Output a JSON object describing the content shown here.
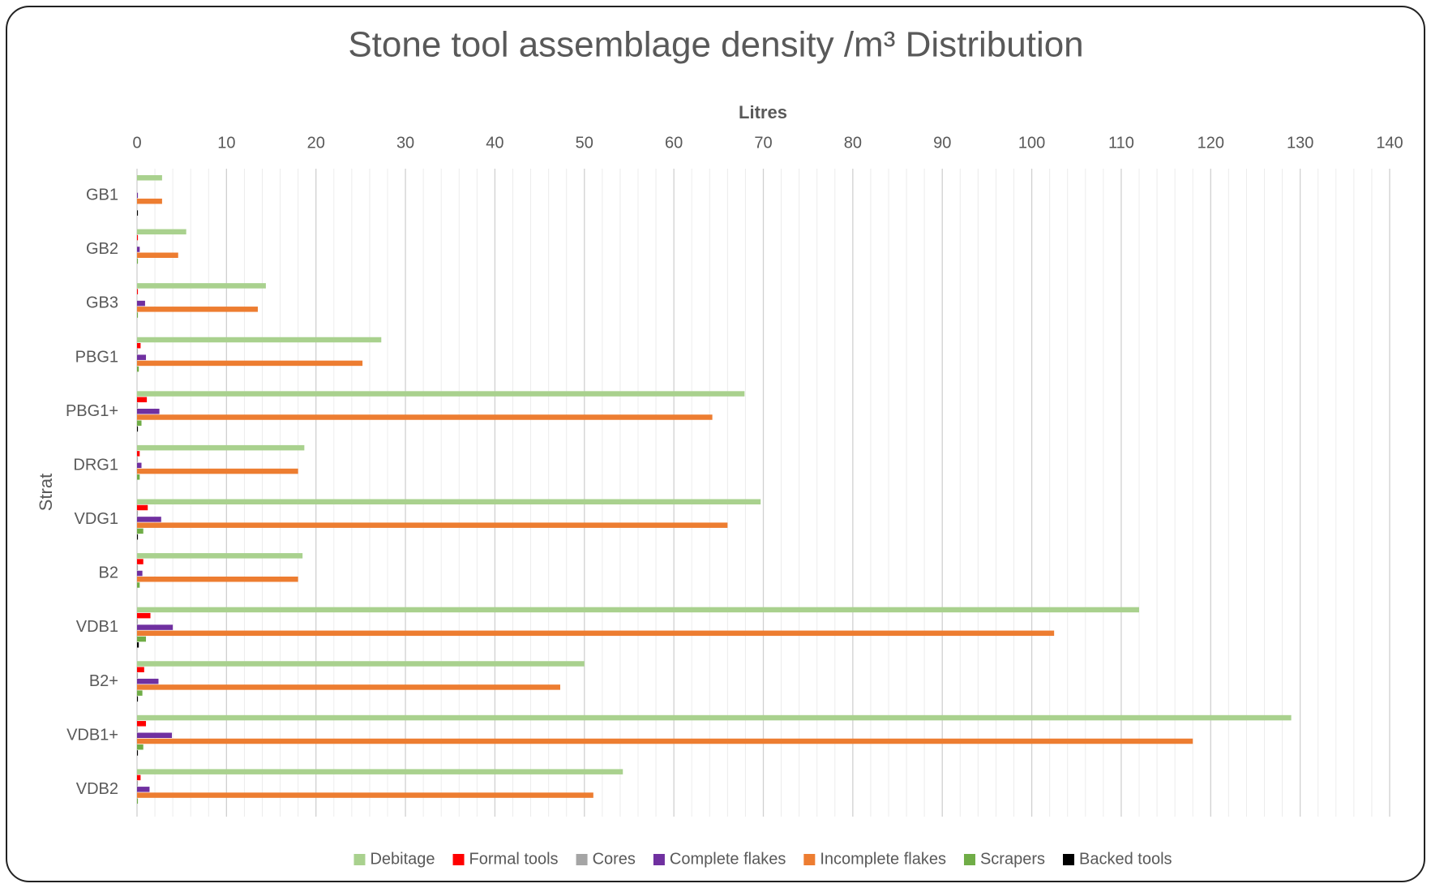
{
  "chart_data": {
    "type": "hbar",
    "title": "Stone tool assemblage density /m³ Distribution",
    "x_label": "Litres",
    "y_label": "Strat",
    "categories": [
      "GB1",
      "GB2",
      "GB3",
      "PBG1",
      "PBG1+",
      "DRG1",
      "VDG1",
      "B2",
      "VDB1",
      "B2+",
      "VDB1+",
      "VDB2"
    ],
    "series": [
      {
        "name": "Debitage",
        "color": "#a9d18e",
        "values": [
          2.8,
          5.5,
          14.4,
          27.3,
          67.9,
          18.7,
          69.7,
          18.5,
          112,
          50.0,
          129,
          54.3
        ]
      },
      {
        "name": "Formal tools",
        "color": "#ff0000",
        "values": [
          0,
          0.1,
          0.1,
          0.4,
          1.1,
          0.3,
          1.2,
          0.7,
          1.5,
          0.8,
          1.0,
          0.4
        ]
      },
      {
        "name": "Cores",
        "color": "#a5a5a5",
        "values": [
          0,
          0,
          0,
          0.1,
          0.1,
          0.1,
          0.1,
          0.1,
          0.1,
          0.1,
          0.1,
          0.1
        ]
      },
      {
        "name": "Complete flakes",
        "color": "#7030a0",
        "values": [
          0.1,
          0.3,
          0.9,
          1.0,
          2.5,
          0.5,
          2.7,
          0.6,
          4.0,
          2.4,
          3.9,
          1.4
        ]
      },
      {
        "name": "Incomplete flakes",
        "color": "#ed7d31",
        "values": [
          2.8,
          4.6,
          13.5,
          25.2,
          64.3,
          18.0,
          66.0,
          18.0,
          102.5,
          47.3,
          118,
          51.0
        ]
      },
      {
        "name": "Scrapers",
        "color": "#70ad47",
        "values": [
          0,
          0.1,
          0.1,
          0.2,
          0.5,
          0.3,
          0.7,
          0.3,
          1.0,
          0.6,
          0.7,
          0.1
        ]
      },
      {
        "name": "Backed tools",
        "color": "#000000",
        "values": [
          0.1,
          0,
          0,
          0,
          0.1,
          0,
          0.1,
          0,
          0.2,
          0.1,
          0.1,
          0
        ]
      }
    ],
    "xlim": [
      0,
      140
    ],
    "xticks": [
      0,
      10,
      20,
      30,
      40,
      50,
      60,
      70,
      80,
      90,
      100,
      110,
      120,
      130,
      140
    ],
    "grid": true,
    "minor_grid": true,
    "legend": "bottom"
  }
}
